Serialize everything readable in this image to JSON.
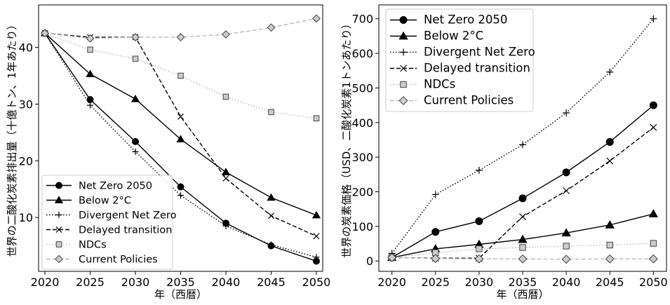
{
  "styles": {
    "Net Zero 2050": {
      "color": "#000000",
      "dash": "",
      "marker": "circle",
      "fill": "#000000"
    },
    "Below 2°C": {
      "color": "#000000",
      "dash": "",
      "marker": "triangle",
      "fill": "#000000"
    },
    "Divergent Net Zero": {
      "color": "#000000",
      "dash": "1.5,2.5",
      "marker": "plus",
      "fill": "none"
    },
    "Delayed transition": {
      "color": "#000000",
      "dash": "6,3",
      "marker": "x",
      "fill": "none"
    },
    "NDCs": {
      "color": "#bbbbbb",
      "dash": "1.5,2.5",
      "marker": "square",
      "fill": "#cccccc"
    },
    "Current Policies": {
      "color": "#bbbbbb",
      "dash": "6,3",
      "marker": "diamond",
      "fill": "#cccccc"
    }
  },
  "chart_data": [
    {
      "type": "line",
      "title": "",
      "xlabel": "年（西暦）",
      "ylabel": "世界の二酸化炭素排出量（十億トン、1年あたり）",
      "x": [
        2020,
        2025,
        2030,
        2035,
        2040,
        2045,
        2050
      ],
      "xticks": [
        2020,
        2025,
        2030,
        2035,
        2040,
        2045,
        2050
      ],
      "yticks": [
        10,
        20,
        30,
        40
      ],
      "xlim": [
        2019.3,
        2050.7
      ],
      "ylim": [
        0.5,
        47.5
      ],
      "grid": false,
      "legend_position": "lower-left",
      "series": [
        {
          "name": "Net Zero 2050",
          "values": [
            42.5,
            30.8,
            23.4,
            15.4,
            9.0,
            5.0,
            2.3
          ]
        },
        {
          "name": "Below 2°C",
          "values": [
            42.5,
            35.3,
            30.9,
            23.8,
            18.0,
            13.5,
            10.4
          ]
        },
        {
          "name": "Divergent Net Zero",
          "values": [
            42.5,
            29.8,
            21.6,
            13.9,
            8.5,
            5.2,
            3.0
          ]
        },
        {
          "name": "Delayed transition",
          "values": [
            42.5,
            41.8,
            41.8,
            27.8,
            16.9,
            10.3,
            6.7
          ]
        },
        {
          "name": "NDCs",
          "values": [
            42.5,
            39.6,
            38.0,
            35.0,
            31.3,
            28.6,
            27.5
          ]
        },
        {
          "name": "Current Policies",
          "values": [
            42.5,
            41.6,
            41.8,
            41.8,
            42.3,
            43.5,
            45.1
          ]
        }
      ]
    },
    {
      "type": "line",
      "title": "",
      "xlabel": "年（西暦）",
      "ylabel": "世界の炭素価格（USD、二酸化炭素1トンあたり）",
      "x": [
        2020,
        2025,
        2030,
        2035,
        2040,
        2045,
        2050
      ],
      "xticks": [
        2020,
        2025,
        2030,
        2035,
        2040,
        2045,
        2050
      ],
      "yticks": [
        0,
        100,
        200,
        300,
        400,
        500,
        600,
        700
      ],
      "xlim": [
        2018.5,
        2051.5
      ],
      "ylim": [
        -30,
        740
      ],
      "grid": false,
      "legend_position": "upper-left",
      "series": [
        {
          "name": "Net Zero 2050",
          "values": [
            10,
            84,
            115,
            181,
            256,
            344,
            450
          ]
        },
        {
          "name": "Below 2°C",
          "values": [
            10,
            35,
            48,
            62,
            81,
            104,
            136
          ]
        },
        {
          "name": "Divergent Net Zero",
          "values": [
            22,
            192,
            262,
            336,
            428,
            546,
            700
          ]
        },
        {
          "name": "Delayed transition",
          "values": [
            10,
            8,
            8,
            128,
            203,
            289,
            386
          ]
        },
        {
          "name": "NDCs",
          "values": [
            10,
            24,
            35,
            39,
            43,
            46,
            51
          ]
        },
        {
          "name": "Current Policies",
          "values": [
            10,
            7,
            6,
            6,
            5,
            6,
            6
          ]
        }
      ]
    }
  ]
}
